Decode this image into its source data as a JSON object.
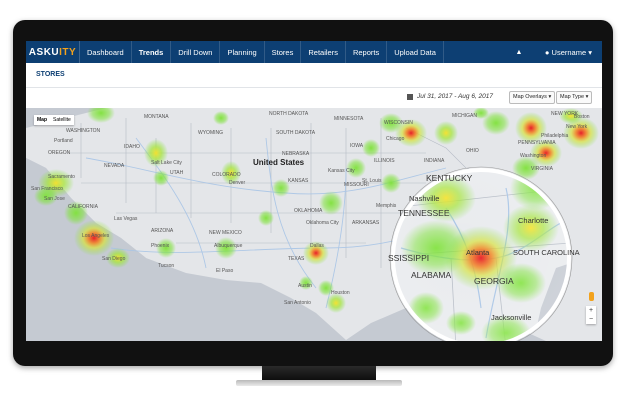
{
  "brand": {
    "logo_main": "ASKU",
    "logo_accent": "ITY",
    "accent_color": "#f2a21d",
    "nav_color": "#0d3f73"
  },
  "nav": {
    "items": [
      {
        "label": "Dashboard"
      },
      {
        "label": "Trends"
      },
      {
        "label": "Drill Down"
      },
      {
        "label": "Planning"
      },
      {
        "label": "Stores"
      },
      {
        "label": "Retailers"
      },
      {
        "label": "Reports"
      },
      {
        "label": "Upload Data"
      }
    ],
    "bell_icon": "bell-icon",
    "username": "Username ▾"
  },
  "page": {
    "title": "STORES"
  },
  "toolbar": {
    "date_range": "Jul 31, 2017 - Aug 6, 2017",
    "map_overlays": "Map Overlays ▾",
    "map_type": "Map Type ▾"
  },
  "map": {
    "type_options": [
      "Map",
      "Satellite"
    ],
    "selected_type": "Map",
    "country_label": "United States",
    "state_labels": [
      "WASHINGTON",
      "MONTANA",
      "NORTH DAKOTA",
      "MINNESOTA",
      "OREGON",
      "IDAHO",
      "WYOMING",
      "SOUTH DAKOTA",
      "NEBRASKA",
      "IOWA",
      "ILLINOIS",
      "NEVADA",
      "UTAH",
      "COLORADO",
      "KANSAS",
      "MISSOURI",
      "CALIFORNIA",
      "ARIZONA",
      "NEW MEXICO",
      "OKLAHOMA",
      "TEXAS",
      "ARKANSAS",
      "NEW YORK",
      "PENNSYLVANIA",
      "OHIO",
      "INDIANA",
      "VIRGINIA",
      "MICHIGAN",
      "WISCONSIN"
    ],
    "city_labels": [
      "Portland",
      "Sacramento",
      "San Francisco",
      "San Jose",
      "Las Vegas",
      "Los Angeles",
      "San Diego",
      "Phoenix",
      "Tucson",
      "Albuquerque",
      "El Paso",
      "Denver",
      "Salt Lake City",
      "Kansas City",
      "St. Louis",
      "Chicago",
      "Dallas",
      "Austin",
      "Houston",
      "San Antonio",
      "Oklahoma City",
      "Memphis",
      "New York",
      "Philadelphia",
      "Washington",
      "Boston"
    ],
    "magnifier_labels": {
      "kentucky": "KENTUCKY",
      "nashville": "Nashville",
      "tennessee": "TENNESSEE",
      "charlotte": "Charlotte",
      "atlanta": "Atlanta",
      "mississippi": "SSISSIPPI",
      "alabama": "ALABAMA",
      "georgia": "GEORGIA",
      "south_carolina": "SOUTH CAROLINA",
      "jacksonville": "Jacksonville"
    },
    "zoom_in": "+",
    "zoom_out": "−",
    "heat_colors": {
      "low": "#7fe23a",
      "mid": "#f6e12a",
      "high": "#e8202a"
    }
  }
}
